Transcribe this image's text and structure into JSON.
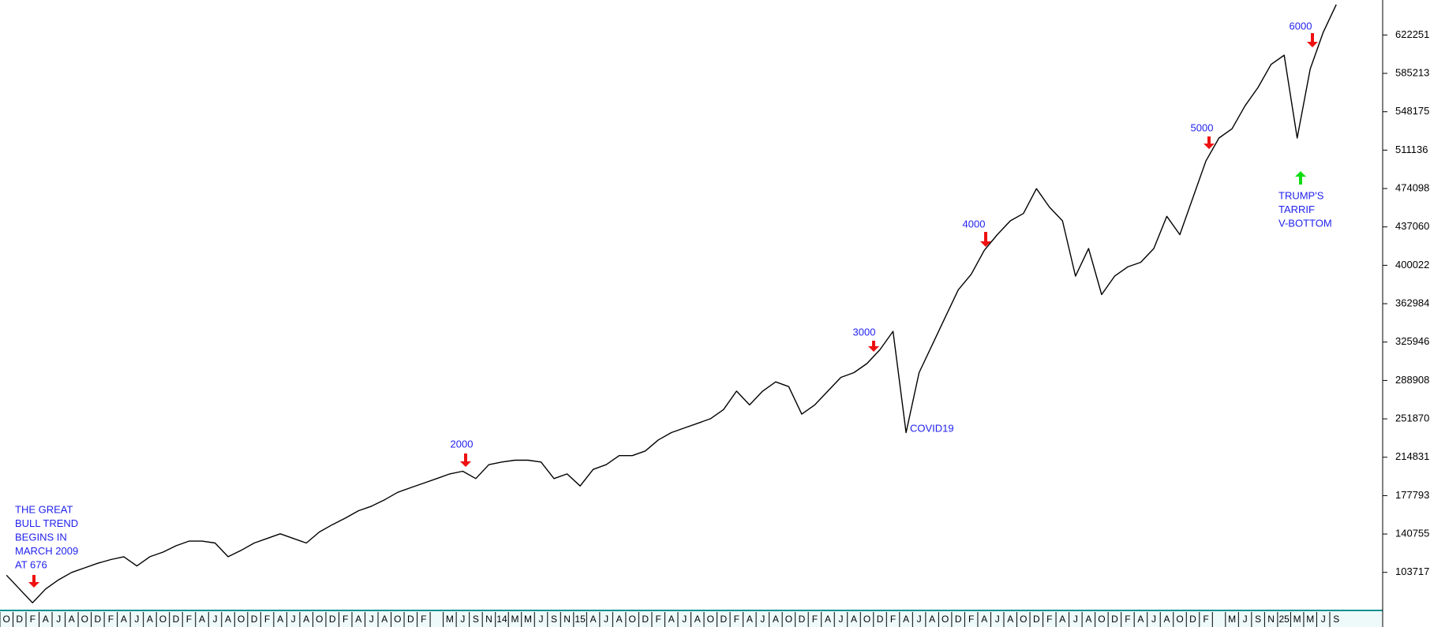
{
  "chart_data": {
    "type": "line",
    "categories": [
      "O",
      "D",
      "F",
      "A",
      "J",
      "A",
      "O",
      "D",
      "F",
      "A",
      "J",
      "A",
      "O",
      "D",
      "F",
      "A",
      "J",
      "A",
      "O",
      "D",
      "F",
      "A",
      "J",
      "A",
      "O",
      "D",
      "F",
      "A",
      "J",
      "A",
      "O",
      "D",
      "F",
      null,
      "M",
      "J",
      "S",
      "N",
      "14",
      "M",
      "M",
      "J",
      "S",
      "N",
      "15",
      "A",
      "J",
      "A",
      "O",
      "D",
      "F",
      "A",
      "J",
      "A",
      "O",
      "D",
      "F",
      "A",
      "J",
      "A",
      "O",
      "D",
      "F",
      "A",
      "J",
      "A",
      "O",
      "D",
      "F",
      "A",
      "J",
      "A",
      "O",
      "D",
      "F",
      "A",
      "J",
      "A",
      "O",
      "D",
      "F",
      "A",
      "J",
      "A",
      "O",
      "D",
      "F",
      "A",
      "J",
      "A",
      "O",
      "D",
      "F",
      null,
      "M",
      "J",
      "S",
      "N",
      "25",
      "M",
      "M",
      "J",
      "S"
    ],
    "series": [
      {
        "color": "#000000",
        "values": [
          101000,
          87700,
          74400,
          87700,
          96600,
          103700,
          108100,
          112500,
          116100,
          118800,
          109900,
          118800,
          123200,
          129400,
          133900,
          133900,
          132100,
          118800,
          125000,
          132100,
          136500,
          141000,
          136500,
          132100,
          142700,
          149800,
          156100,
          163200,
          167600,
          173800,
          180900,
          185400,
          189800,
          194200,
          198700,
          201300,
          194200,
          207600,
          210200,
          212000,
          212000,
          210200,
          194200,
          198700,
          187100,
          203100,
          207600,
          216400,
          216400,
          220900,
          231500,
          238600,
          243100,
          247500,
          252000,
          260800,
          278600,
          265300,
          278600,
          287500,
          283000,
          256400,
          265300,
          278600,
          291900,
          296400,
          305200,
          318600,
          336300,
          238600,
          296400,
          323000,
          349600,
          376300,
          391400,
          414500,
          429600,
          442900,
          450000,
          474000,
          456200,
          442900,
          389600,
          416200,
          371800,
          389600,
          398500,
          402900,
          416200,
          447300,
          429600,
          465100,
          500600,
          522800,
          531700,
          553900,
          571600,
          593800,
          602700,
          522800,
          589400,
          624900,
          651600
        ]
      }
    ],
    "ylim": [
      67000,
      656000
    ],
    "yticks": [
      103717,
      140755,
      177793,
      214831,
      251870,
      288908,
      325946,
      362984,
      400022,
      437060,
      474098,
      511136,
      548175,
      585213,
      622251
    ],
    "annotations": [
      {
        "lines": [
          "THE GREAT",
          "BULL TREND",
          "BEGINS IN",
          "MARCH 2009",
          "AT 676"
        ]
      },
      {
        "lines": [
          "2000"
        ]
      },
      {
        "lines": [
          "3000"
        ]
      },
      {
        "lines": [
          "4000"
        ]
      },
      {
        "lines": [
          "COVID19"
        ]
      },
      {
        "lines": [
          "5000"
        ]
      },
      {
        "lines": [
          "6000"
        ]
      },
      {
        "lines": [
          "TRUMP'S",
          "TARRIF",
          "V-BOTTOM"
        ]
      }
    ]
  }
}
